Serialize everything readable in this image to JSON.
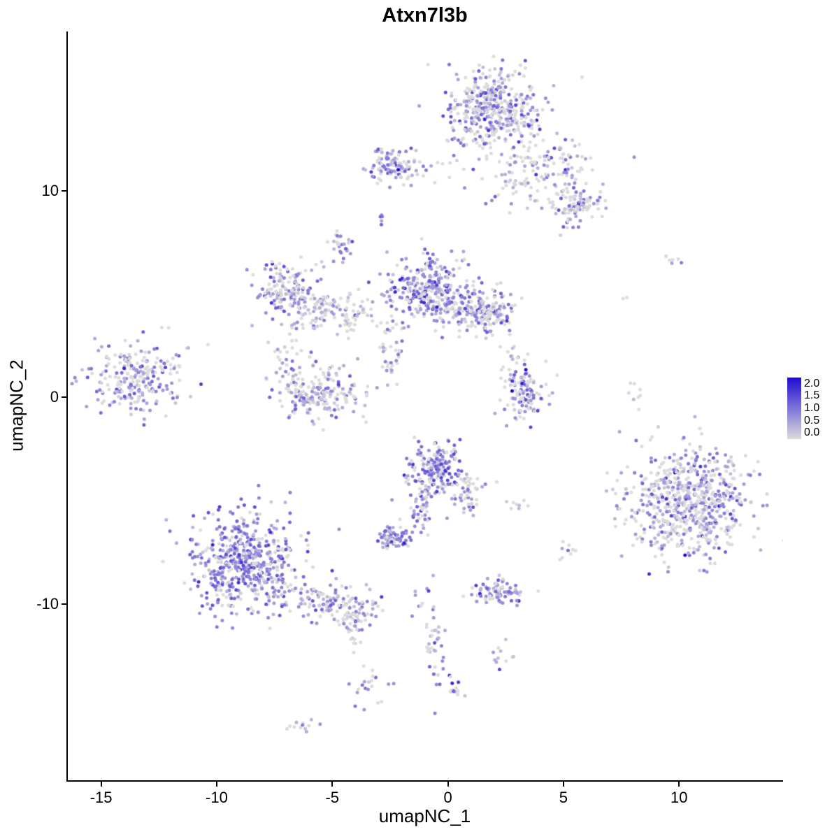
{
  "chart_data": {
    "type": "scatter",
    "title": "Atxn7l3b",
    "xlabel": "umapNC_1",
    "ylabel": "umapNC_2",
    "xlim": [
      -16.5,
      14.5
    ],
    "ylim": [
      -18.6,
      17.7
    ],
    "xticks": [
      -15,
      -10,
      -5,
      0,
      5,
      10
    ],
    "yticks": [
      -10,
      0,
      10
    ],
    "grid": false,
    "point_radius": 2.5,
    "seed": 42,
    "legend": {
      "position": "right",
      "labels": [
        "2.0",
        "1.5",
        "1.0",
        "0.5",
        "0.0"
      ],
      "min": 0.0,
      "max": 2.0,
      "low_color": "#DCDCDC",
      "high_color": "#1F0BD1"
    },
    "representation": "gaussian_cluster_mixture",
    "cluster_fields": "n points, center (cx,cy) in data units, std dev (sx,sy), p0 = fraction of zero-expression (grey) cells, mu/sigma = expression mean and spread on the 0-2 scale",
    "clusters": [
      {
        "name": "top-main",
        "n": 420,
        "cx": 1.9,
        "cy": 14.0,
        "sx": 1.0,
        "sy": 0.95,
        "p0": 0.32,
        "mu": 0.65,
        "sigma": 0.45
      },
      {
        "name": "top-arm",
        "n": 160,
        "cx": 3.9,
        "cy": 11.2,
        "sx": 1.2,
        "sy": 0.9,
        "p0": 0.45,
        "mu": 0.5,
        "sigma": 0.4
      },
      {
        "name": "top-arm-end",
        "n": 90,
        "cx": 5.5,
        "cy": 9.3,
        "sx": 0.6,
        "sy": 0.5,
        "p0": 0.35,
        "mu": 0.6,
        "sigma": 0.45
      },
      {
        "name": "upper-left",
        "n": 110,
        "cx": -2.4,
        "cy": 11.2,
        "sx": 0.55,
        "sy": 0.42,
        "p0": 0.25,
        "mu": 0.7,
        "sigma": 0.4
      },
      {
        "name": "dot-upper",
        "n": 5,
        "cx": -2.9,
        "cy": 8.7,
        "sx": 0.12,
        "sy": 0.15,
        "p0": 0.2,
        "mu": 0.9,
        "sigma": 0.3
      },
      {
        "name": "small-clump",
        "n": 26,
        "cx": -4.6,
        "cy": 7.3,
        "sx": 0.28,
        "sy": 0.38,
        "p0": 0.3,
        "mu": 0.7,
        "sigma": 0.4
      },
      {
        "name": "mid-left",
        "n": 150,
        "cx": -7.0,
        "cy": 5.1,
        "sx": 0.75,
        "sy": 0.75,
        "p0": 0.25,
        "mu": 0.7,
        "sigma": 0.45
      },
      {
        "name": "mid-left-ext",
        "n": 70,
        "cx": -5.6,
        "cy": 4.3,
        "sx": 0.7,
        "sy": 0.45,
        "p0": 0.5,
        "mu": 0.4,
        "sigma": 0.3
      },
      {
        "name": "bridge",
        "n": 50,
        "cx": -4.3,
        "cy": 4.2,
        "sx": 0.6,
        "sy": 0.5,
        "p0": 0.5,
        "mu": 0.45,
        "sigma": 0.35
      },
      {
        "name": "central-main",
        "n": 260,
        "cx": -0.9,
        "cy": 5.3,
        "sx": 0.85,
        "sy": 0.8,
        "p0": 0.2,
        "mu": 0.8,
        "sigma": 0.45
      },
      {
        "name": "central-right",
        "n": 120,
        "cx": 0.7,
        "cy": 4.5,
        "sx": 0.9,
        "sy": 0.55,
        "p0": 0.35,
        "mu": 0.6,
        "sigma": 0.4
      },
      {
        "name": "central-right2",
        "n": 120,
        "cx": 1.9,
        "cy": 4.1,
        "sx": 0.5,
        "sy": 0.5,
        "p0": 0.3,
        "mu": 0.75,
        "sigma": 0.45
      },
      {
        "name": "central-tail",
        "n": 40,
        "cx": -2.4,
        "cy": 2.5,
        "sx": 0.3,
        "sy": 0.9,
        "p0": 0.45,
        "mu": 0.5,
        "sigma": 0.35
      },
      {
        "name": "lower-mid",
        "n": 190,
        "cx": -5.4,
        "cy": 0.2,
        "sx": 0.9,
        "sy": 0.65,
        "p0": 0.35,
        "mu": 0.55,
        "sigma": 0.4
      },
      {
        "name": "lower-mid-arm",
        "n": 35,
        "cx": -6.9,
        "cy": 1.8,
        "sx": 0.45,
        "sy": 0.8,
        "p0": 0.45,
        "mu": 0.45,
        "sigma": 0.35
      },
      {
        "name": "far-left",
        "n": 230,
        "cx": -13.5,
        "cy": 0.9,
        "sx": 0.95,
        "sy": 0.85,
        "p0": 0.3,
        "mu": 0.65,
        "sigma": 0.4
      },
      {
        "name": "far-left-out",
        "n": 10,
        "cx": -11.8,
        "cy": 1.6,
        "sx": 0.5,
        "sy": 0.9,
        "p0": 0.6,
        "mu": 0.4,
        "sigma": 0.3
      },
      {
        "name": "right-mid",
        "n": 110,
        "cx": 3.3,
        "cy": 0.1,
        "sx": 0.5,
        "sy": 0.7,
        "p0": 0.35,
        "mu": 0.6,
        "sigma": 0.55
      },
      {
        "name": "right-mid-trail",
        "n": 16,
        "cx": 2.7,
        "cy": 2.1,
        "sx": 0.35,
        "sy": 0.7,
        "p0": 0.55,
        "mu": 0.4,
        "sigma": 0.3
      },
      {
        "name": "mid-bottom",
        "n": 190,
        "cx": -0.55,
        "cy": -3.5,
        "sx": 0.6,
        "sy": 0.65,
        "p0": 0.18,
        "mu": 0.9,
        "sigma": 0.45
      },
      {
        "name": "mid-bottom-tail",
        "n": 40,
        "cx": -1.1,
        "cy": -5.4,
        "sx": 0.3,
        "sy": 0.65,
        "p0": 0.3,
        "mu": 0.7,
        "sigma": 0.4
      },
      {
        "name": "mid-bottom-right",
        "n": 45,
        "cx": 0.9,
        "cy": -4.6,
        "sx": 0.4,
        "sy": 0.5,
        "p0": 0.4,
        "mu": 0.5,
        "sigma": 0.35
      },
      {
        "name": "tiny-pair",
        "n": 8,
        "cx": 3.1,
        "cy": -5.1,
        "sx": 0.3,
        "sy": 0.15,
        "p0": 0.55,
        "mu": 0.35,
        "sigma": 0.3
      },
      {
        "name": "small-dense",
        "n": 70,
        "cx": -2.35,
        "cy": -6.85,
        "sx": 0.35,
        "sy": 0.3,
        "p0": 0.15,
        "mu": 0.95,
        "sigma": 0.4
      },
      {
        "name": "bottomleft-main",
        "n": 520,
        "cx": -8.7,
        "cy": -8.0,
        "sx": 1.2,
        "sy": 1.2,
        "p0": 0.2,
        "mu": 0.8,
        "sigma": 0.4
      },
      {
        "name": "bottomleft-tail",
        "n": 110,
        "cx": -5.3,
        "cy": -10.0,
        "sx": 1.0,
        "sy": 0.5,
        "p0": 0.3,
        "mu": 0.6,
        "sigma": 0.35
      },
      {
        "name": "tail-end",
        "n": 50,
        "cx": -3.9,
        "cy": -10.6,
        "sx": 0.4,
        "sy": 0.38,
        "p0": 0.3,
        "mu": 0.6,
        "sigma": 0.35
      },
      {
        "name": "bottomright-main",
        "n": 650,
        "cx": 10.5,
        "cy": -5.1,
        "sx": 1.4,
        "sy": 1.35,
        "p0": 0.35,
        "mu": 0.6,
        "sigma": 0.45
      },
      {
        "name": "stray-h",
        "n": 10,
        "cx": -4.1,
        "cy": -11.8,
        "sx": 0.2,
        "sy": 0.5,
        "p0": 0.35,
        "mu": 0.55,
        "sigma": 0.35
      },
      {
        "name": "small-row",
        "n": 85,
        "cx": 2.3,
        "cy": -9.4,
        "sx": 0.55,
        "sy": 0.35,
        "p0": 0.25,
        "mu": 0.7,
        "sigma": 0.35
      },
      {
        "name": "stray-a",
        "n": 12,
        "cx": -0.9,
        "cy": -9.9,
        "sx": 0.25,
        "sy": 0.45,
        "p0": 0.4,
        "mu": 0.6,
        "sigma": 0.4
      },
      {
        "name": "trail-down",
        "n": 35,
        "cx": -0.6,
        "cy": -12.2,
        "sx": 0.2,
        "sy": 0.9,
        "p0": 0.35,
        "mu": 0.55,
        "sigma": 0.35
      },
      {
        "name": "trail-end",
        "n": 14,
        "cx": 0.3,
        "cy": -14.0,
        "sx": 0.22,
        "sy": 0.25,
        "p0": 0.2,
        "mu": 0.9,
        "sigma": 0.6
      },
      {
        "name": "stray-b",
        "n": 12,
        "cx": 2.5,
        "cy": -12.5,
        "sx": 0.3,
        "sy": 0.5,
        "p0": 0.35,
        "mu": 0.6,
        "sigma": 0.4
      },
      {
        "name": "stray-c",
        "n": 20,
        "cx": -3.5,
        "cy": -13.9,
        "sx": 0.35,
        "sy": 0.5,
        "p0": 0.35,
        "mu": 0.55,
        "sigma": 0.35
      },
      {
        "name": "stray-d",
        "n": 12,
        "cx": -6.3,
        "cy": -16.0,
        "sx": 0.3,
        "sy": 0.18,
        "p0": 0.4,
        "mu": 0.5,
        "sigma": 0.3
      },
      {
        "name": "stray-e",
        "n": 9,
        "cx": 5.05,
        "cy": -7.45,
        "sx": 0.22,
        "sy": 0.32,
        "p0": 0.35,
        "mu": 0.6,
        "sigma": 0.35
      },
      {
        "name": "tiny-topright",
        "n": 6,
        "cx": 9.6,
        "cy": 6.7,
        "sx": 0.22,
        "sy": 0.15,
        "p0": 0.5,
        "mu": 0.55,
        "sigma": 0.5
      },
      {
        "name": "pair-right",
        "n": 2,
        "cx": 7.6,
        "cy": 4.8,
        "sx": 0.12,
        "sy": 0.1,
        "p0": 0.7,
        "mu": 0.3,
        "sigma": 0.2
      },
      {
        "name": "right-iso",
        "n": 8,
        "cx": 8.1,
        "cy": 0.3,
        "sx": 0.25,
        "sy": 0.6,
        "p0": 0.7,
        "mu": 0.25,
        "sigma": 0.2
      },
      {
        "name": "stray-g",
        "n": 12,
        "cx": -0.4,
        "cy": 11.2,
        "sx": 0.7,
        "sy": 0.45,
        "p0": 0.5,
        "mu": 0.45,
        "sigma": 0.35
      }
    ]
  }
}
